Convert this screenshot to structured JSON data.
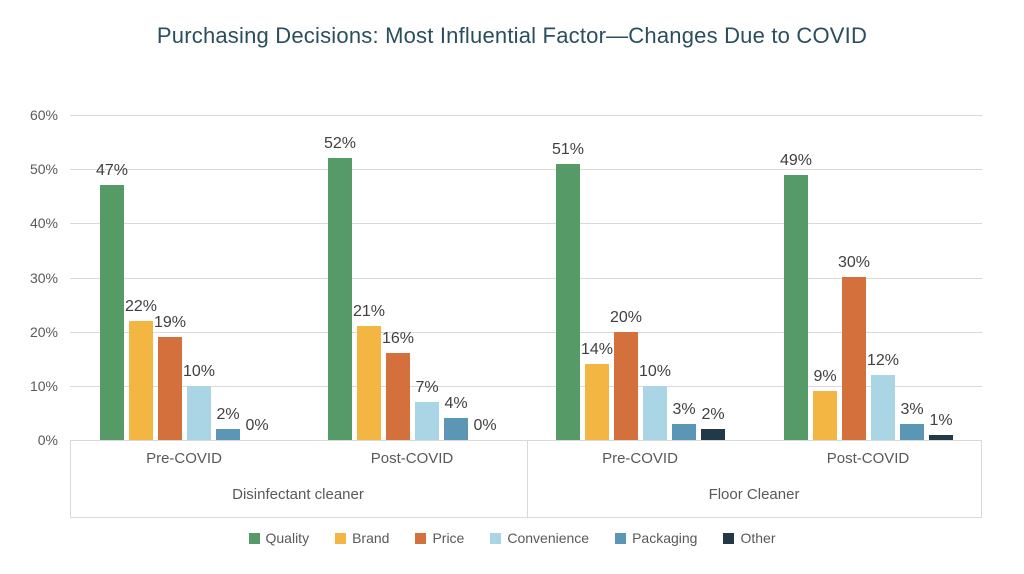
{
  "title": "Purchasing Decisions: Most Influential Factor—Changes Due to COVID",
  "colors": {
    "title_text": "#2b4e5e",
    "gridline": "#d9d9d9",
    "axis_text": "#595959",
    "value_label_text": "#404040"
  },
  "chart_data": {
    "type": "bar",
    "title": "Purchasing Decisions: Most Influential Factor—Changes Due to COVID",
    "xlabel": "",
    "ylabel": "",
    "ylim": [
      0,
      60
    ],
    "grid": true,
    "legend_position": "bottom",
    "value_label_suffix": "%",
    "y_tick_labels": [
      "60%",
      "50%",
      "40%",
      "30%",
      "20%",
      "10%",
      "0%"
    ],
    "categories": [
      "Pre-COVID",
      "Post-COVID",
      "Pre-COVID",
      "Post-COVID"
    ],
    "category_groups": [
      {
        "label": "Disinfectant cleaner",
        "start": 0,
        "count": 2
      },
      {
        "label": "Floor Cleaner",
        "start": 2,
        "count": 2
      }
    ],
    "series": [
      {
        "name": "Quality",
        "color": "#569a68",
        "values": [
          47,
          52,
          51,
          49
        ]
      },
      {
        "name": "Brand",
        "color": "#f4b642",
        "values": [
          22,
          21,
          14,
          9
        ]
      },
      {
        "name": "Price",
        "color": "#d4703c",
        "values": [
          19,
          16,
          20,
          30
        ]
      },
      {
        "name": "Convenience",
        "color": "#a9d5e5",
        "values": [
          10,
          7,
          10,
          12
        ]
      },
      {
        "name": "Packaging",
        "color": "#5b96b5",
        "values": [
          2,
          4,
          3,
          3
        ]
      },
      {
        "name": "Other",
        "color": "#223947",
        "values": [
          0,
          0,
          2,
          1
        ]
      }
    ]
  }
}
